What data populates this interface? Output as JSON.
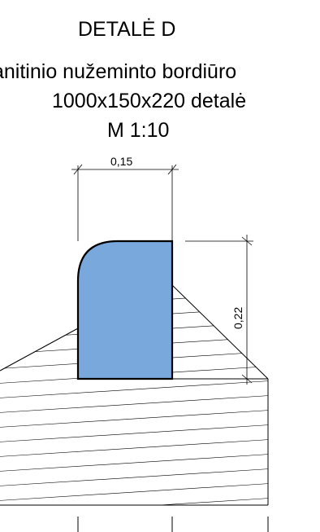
{
  "detail": {
    "title": "DETALĖ D",
    "description_line1": "anitinio nužeminto bordiūro",
    "description_line2": "1000x150x220 detalė",
    "scale": "M 1:10"
  },
  "dimensions": {
    "width_label": "0,15",
    "height_label": "0,22"
  },
  "colors": {
    "curb_fill": "#78A8DC",
    "line": "#000000",
    "hatch": "#000000",
    "background": "#ffffff"
  }
}
